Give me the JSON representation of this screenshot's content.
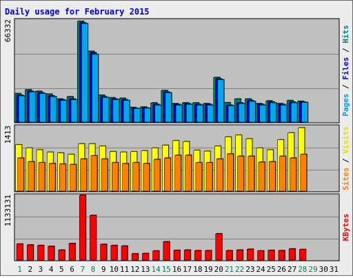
{
  "title": "Daily usage for February 2015",
  "chart_data": {
    "type": "bar",
    "title": "Daily usage for February 2015",
    "days": [
      "1",
      "2",
      "3",
      "4",
      "5",
      "6",
      "7",
      "8",
      "9",
      "10",
      "11",
      "12",
      "13",
      "14",
      "15",
      "16",
      "17",
      "18",
      "19",
      "20",
      "21",
      "22",
      "23",
      "24",
      "25",
      "26",
      "27",
      "28",
      "29",
      "30",
      "31"
    ],
    "weekend_days": [
      "1",
      "7",
      "8",
      "14",
      "15",
      "21",
      "22",
      "28",
      "29"
    ],
    "panels": [
      {
        "id": "pages-files-hits",
        "max_label": "66332",
        "ylim": [
          0,
          66332
        ],
        "axis_label_parts": [
          {
            "text": "Pages",
            "color": "#00a0e0"
          },
          {
            "text": " / ",
            "color": "#000000"
          },
          {
            "text": "Files",
            "color": "#0000cc"
          },
          {
            "text": " / ",
            "color": "#000000"
          },
          {
            "text": "Hits",
            "color": "#008080"
          }
        ],
        "series": [
          {
            "name": "Hits",
            "color": "#00805a",
            "values": [
              18500,
              21000,
              20000,
              18200,
              15000,
              16500,
              65500,
              46000,
              17500,
              15800,
              15500,
              9500,
              9800,
              12500,
              20500,
              12000,
              12500,
              12500,
              12000,
              29000,
              12600,
              15000,
              15000,
              12000,
              13800,
              12000,
              14000,
              13500,
              0,
              0,
              0
            ]
          },
          {
            "name": "Files",
            "color": "#0000e0",
            "values": [
              17500,
              20000,
              19000,
              17000,
              14500,
              15000,
              64500,
              45000,
              16500,
              15000,
              14500,
              9000,
              9200,
              11500,
              19500,
              11500,
              12000,
              11500,
              11500,
              28000,
              11000,
              12500,
              14000,
              11500,
              13000,
              11500,
              13000,
              13000,
              0,
              0,
              0
            ]
          },
          {
            "name": "Pages",
            "color": "#00a8f0",
            "values": [
              17000,
              19500,
              18500,
              16500,
              14000,
              14500,
              64000,
              44000,
              16000,
              14500,
              14000,
              8800,
              9000,
              11000,
              19000,
              11000,
              11500,
              11000,
              11000,
              27500,
              10500,
              12000,
              13500,
              11000,
              12500,
              11000,
              12500,
              12800,
              0,
              0,
              0
            ]
          }
        ]
      },
      {
        "id": "sites-visits",
        "max_label": "1413",
        "ylim": [
          0,
          1413
        ],
        "axis_label_parts": [
          {
            "text": "Sites",
            "color": "#ff8000"
          },
          {
            "text": " / ",
            "color": "#000000"
          },
          {
            "text": "Visits",
            "color": "#e0e000"
          }
        ],
        "series": [
          {
            "name": "Visits",
            "color": "#ffff00",
            "values": [
              1010,
              940,
              900,
              850,
              830,
              800,
              1030,
              1030,
              980,
              860,
              850,
              860,
              880,
              940,
              1000,
              1100,
              1080,
              890,
              870,
              980,
              1180,
              1220,
              1140,
              940,
              900,
              1120,
              1270,
              1380,
              0,
              0,
              0
            ]
          },
          {
            "name": "Sites",
            "color": "#ff8000",
            "values": [
              720,
              640,
              620,
              600,
              590,
              580,
              700,
              770,
              700,
              620,
              600,
              620,
              600,
              690,
              720,
              780,
              780,
              620,
              620,
              700,
              810,
              760,
              760,
              630,
              640,
              760,
              720,
              800,
              0,
              0,
              0
            ]
          }
        ]
      },
      {
        "id": "kbytes",
        "max_label": "1133131",
        "ylim": [
          0,
          1133131
        ],
        "axis_label_parts": [
          {
            "text": "KBytes",
            "color": "#ff0000"
          }
        ],
        "series": [
          {
            "name": "KBytes",
            "color": "#ff0000",
            "values": [
              280000,
              265000,
              255000,
              240000,
              175000,
              290000,
              1133131,
              780000,
              275000,
              255000,
              245000,
              110000,
              115000,
              160000,
              320000,
              170000,
              175000,
              165000,
              165000,
              460000,
              165000,
              175000,
              190000,
              160000,
              170000,
              165000,
              195000,
              185000,
              0,
              0,
              0
            ]
          }
        ]
      }
    ]
  }
}
